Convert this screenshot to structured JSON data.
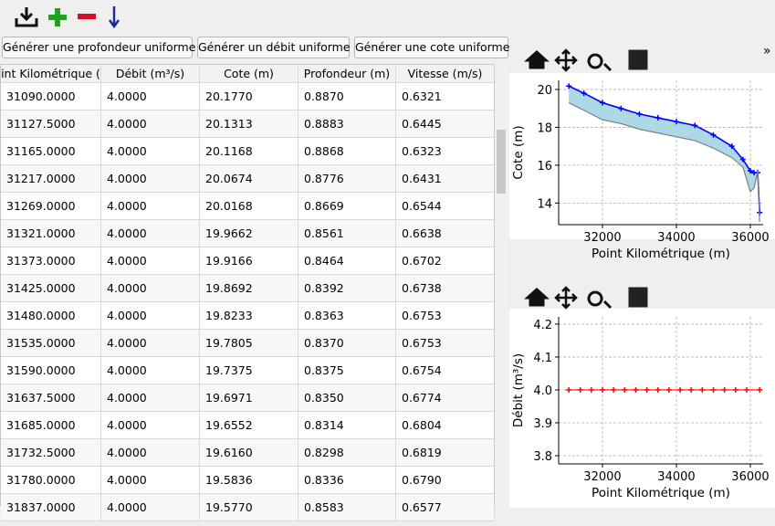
{
  "buttons": [
    "Générer une profondeur uniforme",
    "Générer un débit uniforme",
    "Générer une cote uniforme"
  ],
  "toolbar": {
    "overflow": "»"
  },
  "table": {
    "headers": [
      "int Kilométrique (",
      "Débit (m³/s)",
      "Cote (m)",
      "Profondeur (m)",
      "Vitesse (m/s)"
    ],
    "rows": [
      [
        "31090.0000",
        "4.0000",
        "20.1770",
        "0.8870",
        "0.6321"
      ],
      [
        "31127.5000",
        "4.0000",
        "20.1313",
        "0.8883",
        "0.6445"
      ],
      [
        "31165.0000",
        "4.0000",
        "20.1168",
        "0.8868",
        "0.6323"
      ],
      [
        "31217.0000",
        "4.0000",
        "20.0674",
        "0.8776",
        "0.6431"
      ],
      [
        "31269.0000",
        "4.0000",
        "20.0168",
        "0.8669",
        "0.6544"
      ],
      [
        "31321.0000",
        "4.0000",
        "19.9662",
        "0.8561",
        "0.6638"
      ],
      [
        "31373.0000",
        "4.0000",
        "19.9166",
        "0.8464",
        "0.6702"
      ],
      [
        "31425.0000",
        "4.0000",
        "19.8692",
        "0.8392",
        "0.6738"
      ],
      [
        "31480.0000",
        "4.0000",
        "19.8233",
        "0.8363",
        "0.6753"
      ],
      [
        "31535.0000",
        "4.0000",
        "19.7805",
        "0.8370",
        "0.6753"
      ],
      [
        "31590.0000",
        "4.0000",
        "19.7375",
        "0.8375",
        "0.6754"
      ],
      [
        "31637.5000",
        "4.0000",
        "19.6971",
        "0.8350",
        "0.6774"
      ],
      [
        "31685.0000",
        "4.0000",
        "19.6552",
        "0.8314",
        "0.6804"
      ],
      [
        "31732.5000",
        "4.0000",
        "19.6160",
        "0.8298",
        "0.6819"
      ],
      [
        "31780.0000",
        "4.0000",
        "19.5836",
        "0.8336",
        "0.6790"
      ],
      [
        "31837.0000",
        "4.0000",
        "19.5770",
        "0.8583",
        "0.6577"
      ]
    ]
  },
  "chart_data": [
    {
      "type": "line",
      "xlabel": "Point Kilométrique (m)",
      "ylabel": "Cote (m)",
      "x": [
        31090,
        31500,
        32000,
        32500,
        33000,
        33500,
        34000,
        34500,
        35000,
        35500,
        35800,
        36000,
        36100,
        36200,
        36250
      ],
      "series": [
        {
          "color": "#0000ff",
          "values": [
            20.18,
            19.8,
            19.3,
            19.0,
            18.7,
            18.5,
            18.3,
            18.1,
            17.6,
            17.0,
            16.3,
            15.7,
            15.6,
            15.6,
            13.5
          ]
        },
        {
          "color": "#808080",
          "values": [
            19.3,
            18.9,
            18.4,
            18.2,
            17.9,
            17.7,
            17.5,
            17.3,
            16.9,
            16.4,
            15.9,
            14.6,
            14.8,
            15.7,
            13.0
          ]
        }
      ],
      "fill_color": "#add8e6",
      "xlim": [
        30815,
        36346
      ],
      "ylim": [
        12.86,
        20.48
      ],
      "xticks": [
        32000,
        34000,
        36000
      ],
      "yticks": [
        14,
        16,
        18,
        20
      ],
      "grid": true
    },
    {
      "type": "line",
      "xlabel": "Point Kilométrique (m)",
      "ylabel": "Débit (m³/s)",
      "x": [
        31090,
        31400,
        31700,
        32000,
        32300,
        32600,
        32900,
        33200,
        33500,
        33800,
        34100,
        34400,
        34700,
        35000,
        35300,
        35600,
        35900,
        36250
      ],
      "series": [
        {
          "color": "#ff0000",
          "values": [
            4,
            4,
            4,
            4,
            4,
            4,
            4,
            4,
            4,
            4,
            4,
            4,
            4,
            4,
            4,
            4,
            4,
            4
          ]
        }
      ],
      "xlim": [
        30815,
        36346
      ],
      "ylim": [
        3.775,
        4.222
      ],
      "xticks": [
        32000,
        34000,
        36000
      ],
      "yticks": [
        3.8,
        3.9,
        {
          "value": 4,
          "label": "4.0"
        },
        4.1,
        4.2
      ],
      "grid": true
    }
  ]
}
